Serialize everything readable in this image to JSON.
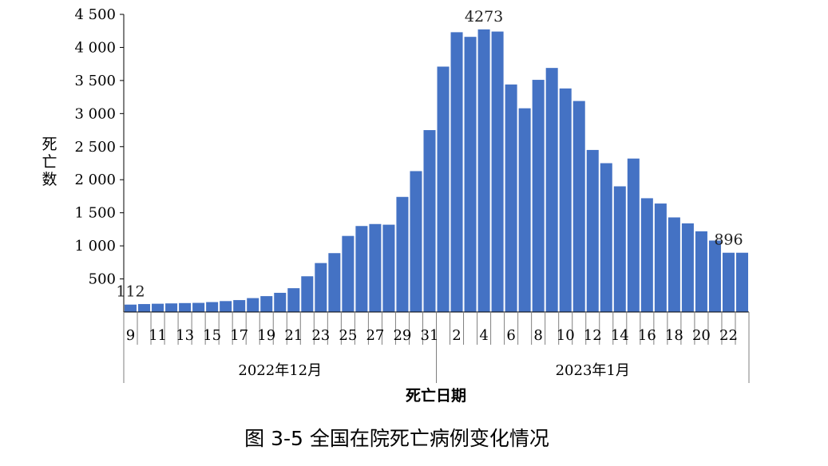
{
  "chart_data": {
    "type": "bar",
    "title": "图 3-5 全国在院死亡病例变化情况",
    "ylabel": "死亡数",
    "xlabel": "死亡日期",
    "ylim": [
      0,
      4500
    ],
    "y_ticks": [
      500,
      1000,
      1500,
      2000,
      2500,
      3000,
      3500,
      4000,
      4500
    ],
    "y_tick_labels": [
      "500",
      "1 000",
      "1 500",
      "2 000",
      "2 500",
      "3 000",
      "3 500",
      "4 000",
      "4 500"
    ],
    "categories": [
      "12-09",
      "12-10",
      "12-11",
      "12-12",
      "12-13",
      "12-14",
      "12-15",
      "12-16",
      "12-17",
      "12-18",
      "12-19",
      "12-20",
      "12-21",
      "12-22",
      "12-23",
      "12-24",
      "12-25",
      "12-26",
      "12-27",
      "12-28",
      "12-29",
      "12-30",
      "12-31",
      "01-01",
      "01-02",
      "01-03",
      "01-04",
      "01-05",
      "01-06",
      "01-07",
      "01-08",
      "01-09",
      "01-10",
      "01-11",
      "01-12",
      "01-13",
      "01-14",
      "01-15",
      "01-16",
      "01-17",
      "01-18",
      "01-19",
      "01-20",
      "01-21",
      "01-22",
      "01-23"
    ],
    "values": [
      112,
      120,
      125,
      130,
      135,
      138,
      150,
      165,
      180,
      210,
      240,
      290,
      360,
      540,
      740,
      890,
      1150,
      1300,
      1330,
      1320,
      1740,
      2130,
      2750,
      3710,
      4230,
      4160,
      4273,
      4240,
      3440,
      3080,
      3510,
      3690,
      3380,
      3190,
      2450,
      2250,
      1900,
      2320,
      1720,
      1640,
      1430,
      1340,
      1220,
      1080,
      896,
      896
    ],
    "x_tick_labels": [
      "9",
      "11",
      "13",
      "15",
      "17",
      "19",
      "21",
      "23",
      "25",
      "27",
      "29",
      "31",
      "2",
      "4",
      "6",
      "8",
      "10",
      "12",
      "14",
      "16",
      "18",
      "20",
      "22"
    ],
    "groups": [
      {
        "label": "2022年12月",
        "count": 23
      },
      {
        "label": "2023年1月",
        "count": 23
      }
    ],
    "annotations": [
      {
        "index": 0,
        "text": "112"
      },
      {
        "index": 26,
        "text": "4273"
      },
      {
        "index": 44,
        "text": "896"
      }
    ],
    "bar_color": "#4472C4",
    "grid": false,
    "legend": "none"
  }
}
